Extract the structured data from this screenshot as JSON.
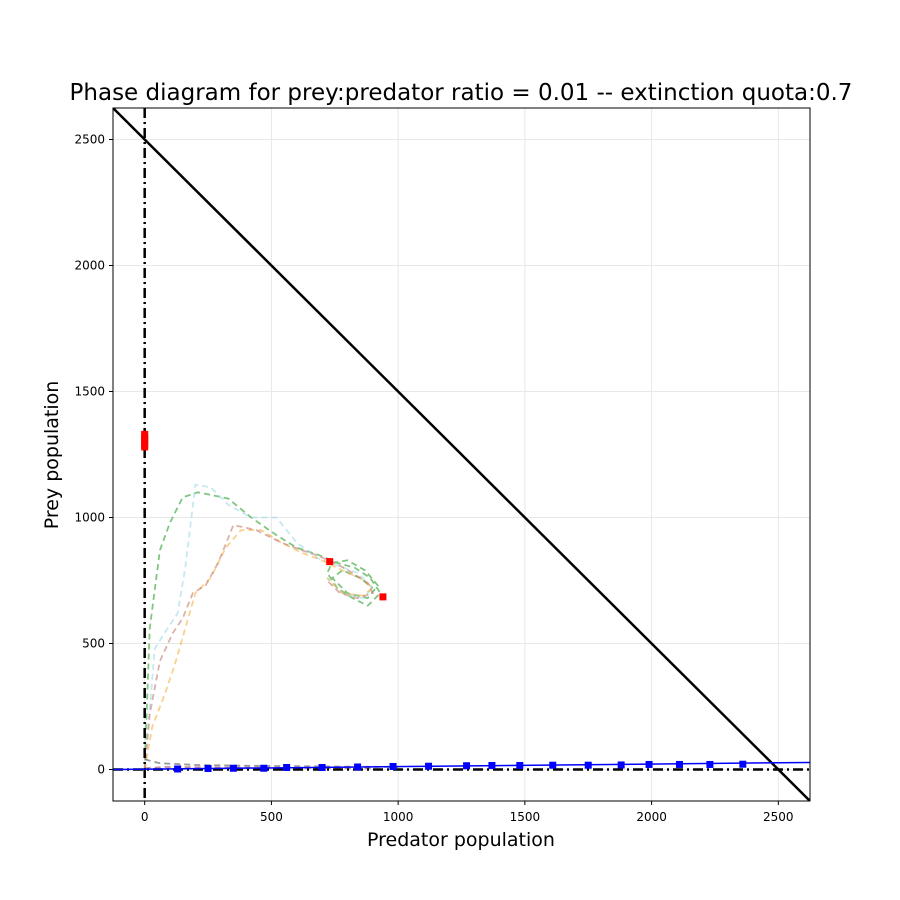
{
  "chart_data": {
    "type": "line",
    "title": "Phase diagram for prey:predator ratio = 0.01 -- extinction quota:0.7",
    "xlabel": "Predator population",
    "ylabel": "Prey population",
    "xlim": [
      -125,
      2625
    ],
    "ylim": [
      -125,
      2625
    ],
    "xticks": [
      0,
      500,
      1000,
      1500,
      2000,
      2500
    ],
    "yticks": [
      0,
      500,
      1000,
      1500,
      2000,
      2500
    ],
    "grid": true,
    "legend": "none",
    "reference_lines": [
      {
        "kind": "diagonal",
        "x": [
          -125,
          2625
        ],
        "y": [
          2625,
          -125
        ],
        "color": "#000000",
        "style": "solid"
      },
      {
        "kind": "vertical",
        "x": 0,
        "color": "#000000",
        "style": "dashdot"
      },
      {
        "kind": "horizontal",
        "y": 0,
        "color": "#000000",
        "style": "dashdot"
      },
      {
        "kind": "line",
        "x": [
          -125,
          2625
        ],
        "y": [
          0,
          28
        ],
        "color": "#0000ff",
        "style": "solid"
      }
    ],
    "series": [
      {
        "color": "#2ca02c",
        "style": "dashed",
        "x": [
          0,
          5,
          20,
          60,
          100,
          150,
          210,
          260,
          330,
          420,
          520,
          600,
          690,
          760,
          830,
          890,
          930,
          880,
          820,
          760,
          720,
          740,
          800,
          870,
          920,
          880,
          800,
          740,
          780,
          850,
          900
        ],
        "y": [
          0,
          150,
          560,
          870,
          980,
          1080,
          1100,
          1090,
          1075,
          1000,
          930,
          880,
          850,
          820,
          800,
          760,
          700,
          650,
          680,
          720,
          780,
          820,
          830,
          790,
          730,
          680,
          700,
          760,
          790,
          760,
          720
        ]
      },
      {
        "color": "#9fd8e8",
        "style": "dashed",
        "x": [
          0,
          40,
          90,
          130,
          160,
          200,
          260,
          330,
          420,
          520,
          600,
          680,
          760,
          840,
          900,
          860,
          780,
          720
        ],
        "y": [
          0,
          480,
          560,
          620,
          800,
          1130,
          1120,
          1050,
          1000,
          1000,
          900,
          840,
          810,
          780,
          720,
          680,
          700,
          760
        ]
      },
      {
        "color": "#f5b342",
        "style": "dashed",
        "x": [
          0,
          30,
          80,
          120,
          160,
          200,
          260,
          320,
          380,
          460,
          540,
          620,
          700,
          780,
          850,
          900,
          860,
          780,
          720
        ],
        "y": [
          0,
          170,
          300,
          420,
          560,
          700,
          760,
          880,
          950,
          950,
          900,
          860,
          830,
          790,
          760,
          720,
          690,
          700,
          760
        ]
      },
      {
        "color": "#c77b72",
        "style": "dashed",
        "x": [
          0,
          20,
          60,
          110,
          150,
          190,
          240,
          290,
          350,
          440,
          540,
          620,
          680,
          750,
          820,
          880,
          900,
          840,
          770,
          720
        ],
        "y": [
          0,
          220,
          430,
          540,
          600,
          700,
          730,
          820,
          970,
          950,
          900,
          870,
          850,
          820,
          780,
          740,
          700,
          680,
          700,
          750
        ]
      },
      {
        "color": "#555555",
        "style": "dashed",
        "x": [
          0,
          60,
          200,
          400,
          700,
          1000
        ],
        "y": [
          40,
          25,
          18,
          15,
          12,
          10
        ]
      },
      {
        "color": "#8b3a6b",
        "style": "dashed",
        "x": [
          0,
          80,
          300,
          600,
          900
        ],
        "y": [
          5,
          10,
          8,
          6,
          5
        ]
      }
    ],
    "markers": [
      {
        "color": "#ff0000",
        "points": [
          [
            0,
            1330
          ],
          [
            0,
            1320
          ],
          [
            0,
            1310
          ],
          [
            0,
            1300
          ],
          [
            0,
            1290
          ],
          [
            0,
            1280
          ],
          [
            730,
            825
          ],
          [
            940,
            685
          ]
        ]
      },
      {
        "color": "#0000ff",
        "points": [
          [
            130,
            2
          ],
          [
            250,
            4
          ],
          [
            350,
            5
          ],
          [
            470,
            5
          ],
          [
            560,
            8
          ],
          [
            700,
            8
          ],
          [
            840,
            10
          ],
          [
            980,
            12
          ],
          [
            1120,
            13
          ],
          [
            1270,
            15
          ],
          [
            1370,
            16
          ],
          [
            1480,
            16
          ],
          [
            1610,
            17
          ],
          [
            1750,
            17
          ],
          [
            1880,
            18
          ],
          [
            1990,
            20
          ],
          [
            2110,
            20
          ],
          [
            2230,
            20
          ],
          [
            2360,
            21
          ]
        ]
      }
    ]
  }
}
